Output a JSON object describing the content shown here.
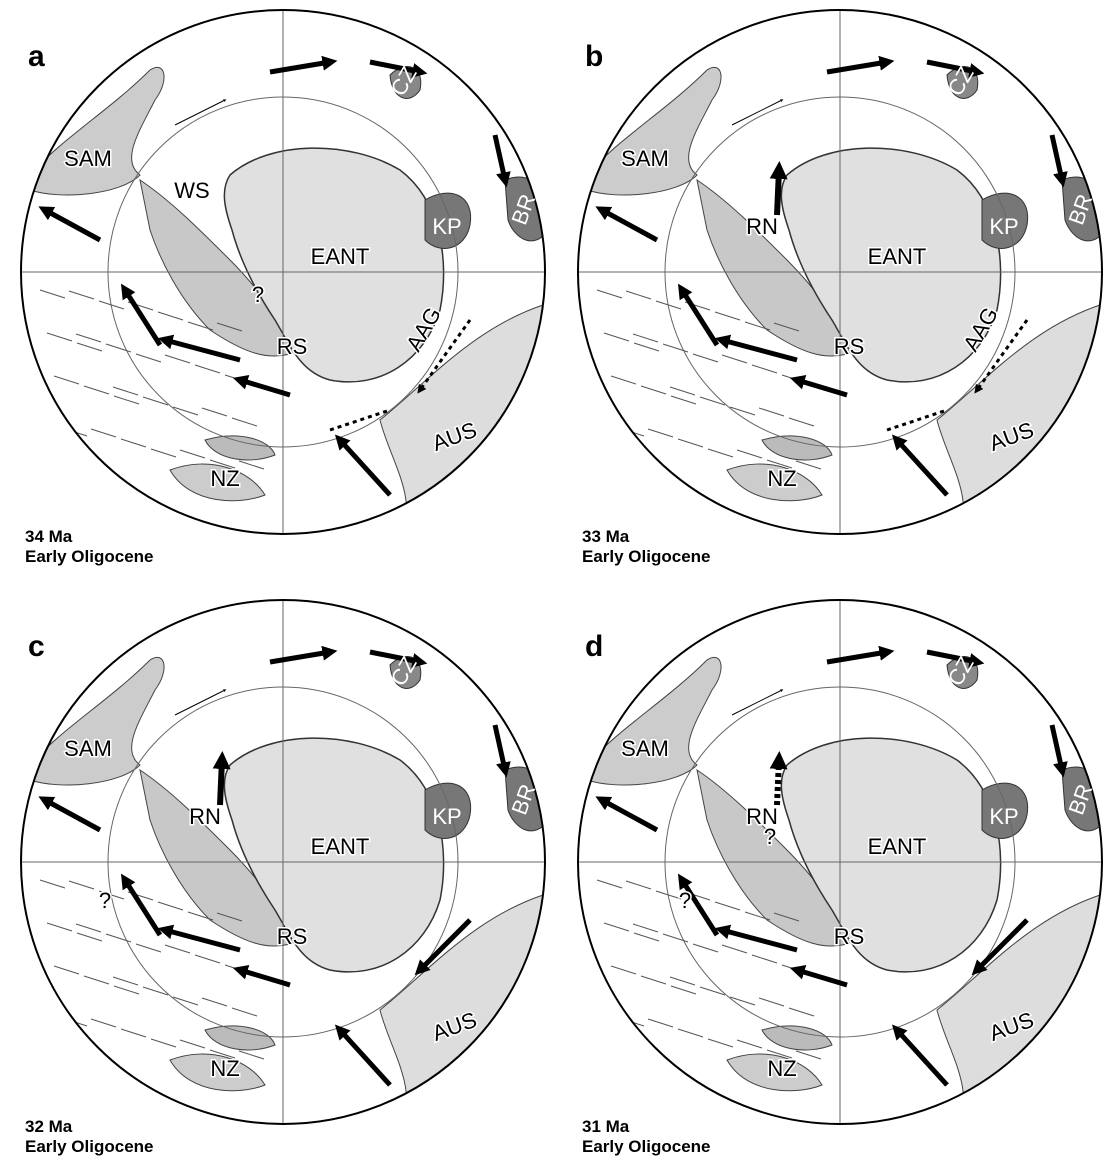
{
  "panels": [
    {
      "letter": "a",
      "age": "34 Ma",
      "epoch": "Early Oligocene",
      "labels": [
        "SAM",
        "WS",
        "?",
        "EANT",
        "RS",
        "AAG",
        "AUS",
        "NZ",
        "CZ",
        "KP",
        "BR"
      ]
    },
    {
      "letter": "b",
      "age": "33 Ma",
      "epoch": "Early Oligocene",
      "labels": [
        "SAM",
        "RN",
        "EANT",
        "RS",
        "AAG",
        "AUS",
        "NZ",
        "CZ",
        "KP",
        "BR"
      ]
    },
    {
      "letter": "c",
      "age": "32 Ma",
      "epoch": "Early Oligocene",
      "labels": [
        "SAM",
        "?",
        "RN",
        "EANT",
        "RS",
        "AUS",
        "NZ",
        "CZ",
        "KP",
        "BR"
      ]
    },
    {
      "letter": "d",
      "age": "31 Ma",
      "epoch": "Early Oligocene",
      "labels": [
        "SAM",
        "?",
        "?",
        "RN",
        "EANT",
        "RS",
        "AUS",
        "NZ",
        "CZ",
        "KP",
        "BR"
      ]
    }
  ]
}
